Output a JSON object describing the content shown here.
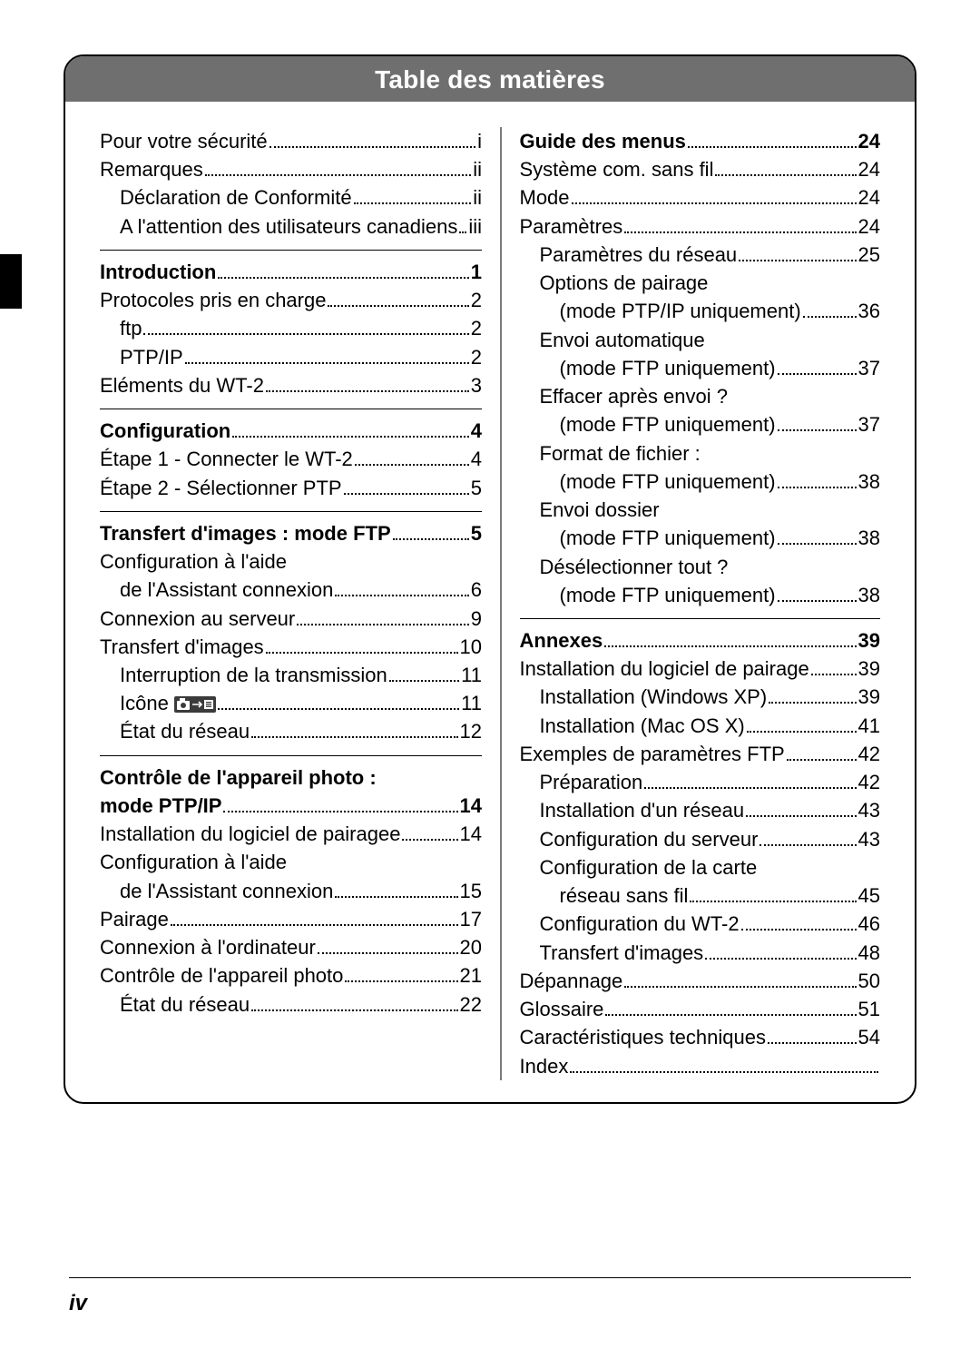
{
  "title": "Table des matières",
  "page_number": "iv",
  "colors": {
    "title_bar_bg": "#6f6f6f",
    "title_bar_fg": "#ffffff",
    "border": "#000000",
    "divider": "#7a7a7a",
    "side_tab": "#000000"
  },
  "left": [
    {
      "type": "entry",
      "indent": 0,
      "bold": false,
      "label": "Pour votre sécurité",
      "page": "i"
    },
    {
      "type": "entry",
      "indent": 0,
      "bold": false,
      "label": "Remarques",
      "page": "ii"
    },
    {
      "type": "entry",
      "indent": 1,
      "bold": false,
      "label": "Déclaration de Conformité",
      "page": "ii"
    },
    {
      "type": "entry",
      "indent": 1,
      "bold": false,
      "label": "A l'attention des utilisateurs canadiens",
      "page": "iii"
    },
    {
      "type": "sep"
    },
    {
      "type": "entry",
      "indent": 0,
      "bold": true,
      "label": "Introduction",
      "page": "1"
    },
    {
      "type": "entry",
      "indent": 0,
      "bold": false,
      "label": "Protocoles pris en charge",
      "page": "2"
    },
    {
      "type": "entry",
      "indent": 1,
      "bold": false,
      "label": "ftp",
      "page": "2"
    },
    {
      "type": "entry",
      "indent": 1,
      "bold": false,
      "label": "PTP/IP",
      "page": "2"
    },
    {
      "type": "entry",
      "indent": 0,
      "bold": false,
      "label": "Eléments du WT-2",
      "page": "3"
    },
    {
      "type": "sep"
    },
    {
      "type": "entry",
      "indent": 0,
      "bold": true,
      "label": "Configuration",
      "page": "4"
    },
    {
      "type": "entry",
      "indent": 0,
      "bold": false,
      "label": "Étape 1 - Connecter le WT-2",
      "page": "4"
    },
    {
      "type": "entry",
      "indent": 0,
      "bold": false,
      "label": "Étape 2 - Sélectionner PTP",
      "page": "5"
    },
    {
      "type": "sep"
    },
    {
      "type": "entry",
      "indent": 0,
      "bold": true,
      "label": "Transfert d'images : mode FTP",
      "page": "5"
    },
    {
      "type": "cont",
      "indent": 0,
      "bold": false,
      "label": "Configuration à l'aide"
    },
    {
      "type": "entry",
      "indent": 1,
      "bold": false,
      "label": "de l'Assistant connexion",
      "page": "6"
    },
    {
      "type": "entry",
      "indent": 0,
      "bold": false,
      "label": "Connexion au serveur",
      "page": "9"
    },
    {
      "type": "entry",
      "indent": 0,
      "bold": false,
      "label": "Transfert d'images",
      "page": "10"
    },
    {
      "type": "entry",
      "indent": 1,
      "bold": false,
      "label": "Interruption de la transmission",
      "page": "11"
    },
    {
      "type": "entry",
      "indent": 1,
      "bold": false,
      "label": "Icône ",
      "icon": "camera-send",
      "page": "11"
    },
    {
      "type": "entry",
      "indent": 1,
      "bold": false,
      "label": "État du réseau",
      "page": "12"
    },
    {
      "type": "sep"
    },
    {
      "type": "cont",
      "indent": 0,
      "bold": true,
      "label": "Contrôle de l'appareil photo :"
    },
    {
      "type": "entry",
      "indent": 0,
      "bold": true,
      "label": "mode PTP/IP",
      "page": "14"
    },
    {
      "type": "entry",
      "indent": 0,
      "bold": false,
      "label": "Installation du logiciel de pairagee",
      "page": "14"
    },
    {
      "type": "cont",
      "indent": 0,
      "bold": false,
      "label": "Configuration à l'aide"
    },
    {
      "type": "entry",
      "indent": 1,
      "bold": false,
      "label": "de l'Assistant connexion",
      "page": "15"
    },
    {
      "type": "entry",
      "indent": 0,
      "bold": false,
      "label": "Pairage",
      "page": "17"
    },
    {
      "type": "entry",
      "indent": 0,
      "bold": false,
      "label": "Connexion à l'ordinateur",
      "page": "20"
    },
    {
      "type": "entry",
      "indent": 0,
      "bold": false,
      "label": "Contrôle de l'appareil photo",
      "page": "21"
    },
    {
      "type": "entry",
      "indent": 1,
      "bold": false,
      "label": "État du réseau",
      "page": "22"
    }
  ],
  "right": [
    {
      "type": "entry",
      "indent": 0,
      "bold": true,
      "label": "Guide des menus",
      "page": "24"
    },
    {
      "type": "entry",
      "indent": 0,
      "bold": false,
      "label": "Système com. sans fil",
      "page": "24"
    },
    {
      "type": "entry",
      "indent": 0,
      "bold": false,
      "label": "Mode",
      "page": "24"
    },
    {
      "type": "entry",
      "indent": 0,
      "bold": false,
      "label": "Paramètres",
      "page": "24"
    },
    {
      "type": "entry",
      "indent": 1,
      "bold": false,
      "label": "Paramètres du réseau",
      "page": "25"
    },
    {
      "type": "cont",
      "indent": 1,
      "bold": false,
      "label": "Options de pairage"
    },
    {
      "type": "entry",
      "indent": 2,
      "bold": false,
      "label": "(mode PTP/IP uniquement)",
      "page": "36"
    },
    {
      "type": "cont",
      "indent": 1,
      "bold": false,
      "label": "Envoi automatique"
    },
    {
      "type": "entry",
      "indent": 2,
      "bold": false,
      "label": "(mode FTP uniquement)",
      "page": "37"
    },
    {
      "type": "cont",
      "indent": 1,
      "bold": false,
      "label": "Effacer après envoi ?"
    },
    {
      "type": "entry",
      "indent": 2,
      "bold": false,
      "label": "(mode FTP uniquement)",
      "page": "37"
    },
    {
      "type": "cont",
      "indent": 1,
      "bold": false,
      "label": "Format de fichier :"
    },
    {
      "type": "entry",
      "indent": 2,
      "bold": false,
      "label": "(mode FTP uniquement)",
      "page": "38"
    },
    {
      "type": "cont",
      "indent": 1,
      "bold": false,
      "label": "Envoi dossier"
    },
    {
      "type": "entry",
      "indent": 2,
      "bold": false,
      "label": "(mode FTP uniquement)",
      "page": "38"
    },
    {
      "type": "cont",
      "indent": 1,
      "bold": false,
      "label": "Désélectionner tout ?"
    },
    {
      "type": "entry",
      "indent": 2,
      "bold": false,
      "label": "(mode FTP uniquement)",
      "page": "38"
    },
    {
      "type": "sep"
    },
    {
      "type": "entry",
      "indent": 0,
      "bold": true,
      "label": "Annexes",
      "page": "39"
    },
    {
      "type": "entry",
      "indent": 0,
      "bold": false,
      "label": "Installation du logiciel de pairage",
      "page": "39"
    },
    {
      "type": "entry",
      "indent": 1,
      "bold": false,
      "label": "Installation (Windows XP)",
      "page": "39"
    },
    {
      "type": "entry",
      "indent": 1,
      "bold": false,
      "label": "Installation (Mac OS X)",
      "page": "41"
    },
    {
      "type": "entry",
      "indent": 0,
      "bold": false,
      "label": "Exemples de paramètres FTP",
      "page": "42"
    },
    {
      "type": "entry",
      "indent": 1,
      "bold": false,
      "label": "Préparation",
      "page": "42"
    },
    {
      "type": "entry",
      "indent": 1,
      "bold": false,
      "label": "Installation d'un réseau",
      "page": "43"
    },
    {
      "type": "entry",
      "indent": 1,
      "bold": false,
      "label": "Configuration du serveur",
      "page": "43"
    },
    {
      "type": "cont",
      "indent": 1,
      "bold": false,
      "label": "Configuration de la carte"
    },
    {
      "type": "entry",
      "indent": 2,
      "bold": false,
      "label": "réseau sans fil",
      "page": "45"
    },
    {
      "type": "entry",
      "indent": 1,
      "bold": false,
      "label": "Configuration du WT-2",
      "page": "46"
    },
    {
      "type": "entry",
      "indent": 1,
      "bold": false,
      "label": "Transfert d'images",
      "page": "48"
    },
    {
      "type": "entry",
      "indent": 0,
      "bold": false,
      "label": "Dépannage",
      "page": "50"
    },
    {
      "type": "entry",
      "indent": 0,
      "bold": false,
      "label": "Glossaire",
      "page": "51"
    },
    {
      "type": "entry",
      "indent": 0,
      "bold": false,
      "label": "Caractéristiques techniques",
      "page": "54"
    },
    {
      "type": "entry",
      "indent": 0,
      "bold": false,
      "label": "Index",
      "page": ""
    }
  ]
}
